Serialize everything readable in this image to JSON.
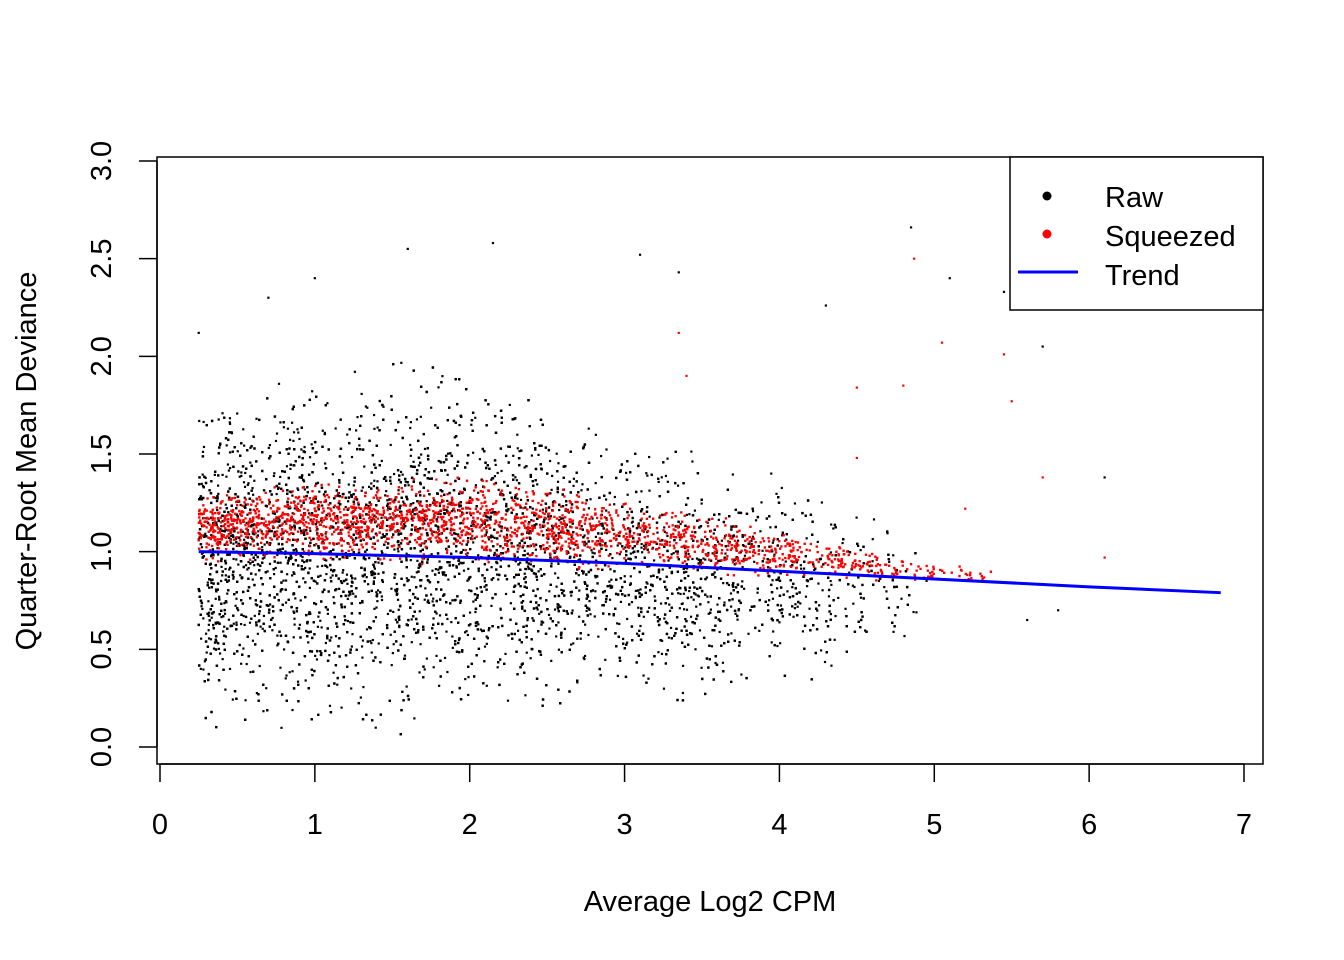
{
  "chart_data": {
    "type": "scatter",
    "title": "",
    "xlabel": "Average Log2 CPM",
    "ylabel": "Quarter-Root Mean Deviance",
    "xlim": [
      0,
      7
    ],
    "ylim": [
      0,
      3
    ],
    "xticks": [
      "0",
      "1",
      "2",
      "3",
      "4",
      "5",
      "6",
      "7"
    ],
    "yticks": [
      "0.0",
      "0.5",
      "1.0",
      "1.5",
      "2.0",
      "2.5",
      "3.0"
    ],
    "grid": false,
    "legend": {
      "placement": "top-right",
      "entries": [
        {
          "label": "Raw",
          "color": "#000000",
          "kind": "point"
        },
        {
          "label": "Squeezed",
          "color": "#ff0000",
          "kind": "point"
        },
        {
          "label": "Trend",
          "color": "#0000ff",
          "kind": "line"
        }
      ]
    },
    "series": [
      {
        "name": "Raw",
        "color": "#000000",
        "envelope": {
          "x": [
            0.25,
            0.5,
            1.0,
            1.5,
            2.0,
            2.5,
            3.0,
            3.5,
            4.0,
            4.5,
            5.0
          ],
          "lower": [
            0.1,
            0.1,
            0.08,
            0.05,
            0.18,
            0.2,
            0.2,
            0.25,
            0.3,
            0.4,
            0.55
          ],
          "upper": [
            1.8,
            1.85,
            1.95,
            2.0,
            1.9,
            1.75,
            1.6,
            1.5,
            1.4,
            1.25,
            1.05
          ]
        },
        "outliers": [
          [
            0.25,
            2.12
          ],
          [
            0.7,
            2.3
          ],
          [
            1.0,
            2.4
          ],
          [
            1.6,
            2.55
          ],
          [
            2.15,
            2.58
          ],
          [
            3.1,
            2.52
          ],
          [
            3.35,
            2.43
          ],
          [
            4.85,
            2.66
          ],
          [
            5.1,
            2.4
          ],
          [
            5.45,
            2.33
          ],
          [
            5.7,
            2.05
          ],
          [
            6.1,
            1.38
          ],
          [
            5.8,
            0.7
          ],
          [
            5.6,
            0.65
          ],
          [
            4.3,
            2.26
          ]
        ]
      },
      {
        "name": "Squeezed",
        "color": "#ff0000",
        "envelope": {
          "x": [
            0.25,
            1.0,
            2.0,
            3.0,
            4.0,
            4.7,
            5.5
          ],
          "lower": [
            0.95,
            0.95,
            0.93,
            0.9,
            0.87,
            0.85,
            0.82
          ],
          "upper": [
            1.3,
            1.38,
            1.38,
            1.28,
            1.12,
            0.98,
            0.9
          ]
        },
        "outliers": [
          [
            4.87,
            2.5
          ],
          [
            5.05,
            2.07
          ],
          [
            5.45,
            2.01
          ],
          [
            5.5,
            1.77
          ],
          [
            4.5,
            1.84
          ],
          [
            4.8,
            1.85
          ],
          [
            4.5,
            1.48
          ],
          [
            5.2,
            1.22
          ],
          [
            5.7,
            1.38
          ],
          [
            6.1,
            0.97
          ],
          [
            3.35,
            2.12
          ],
          [
            3.4,
            1.9
          ]
        ]
      },
      {
        "name": "Trend",
        "color": "#0000ff",
        "x": [
          0.25,
          1.0,
          2.0,
          3.0,
          4.0,
          5.0,
          6.0,
          6.85
        ],
        "y": [
          1.0,
          0.99,
          0.97,
          0.94,
          0.9,
          0.86,
          0.82,
          0.79
        ]
      }
    ]
  }
}
